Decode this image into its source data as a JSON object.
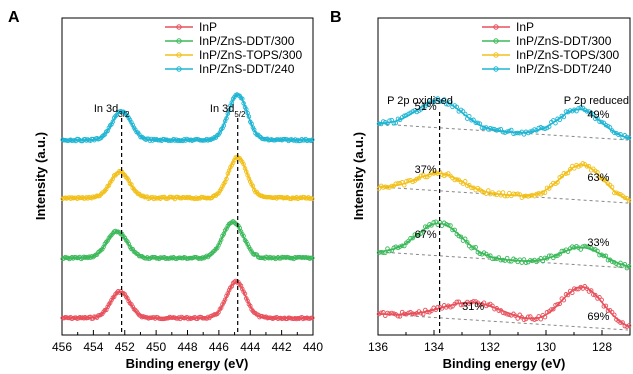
{
  "chart_data": [
    {
      "panel": "A",
      "type": "scatter",
      "xlabel": "Binding energy (eV)",
      "ylabel": "Intensity (a.u.)",
      "xlim": [
        456,
        440
      ],
      "x_reversed": true,
      "xticks": [
        "456",
        "454",
        "452",
        "450",
        "448",
        "446",
        "444",
        "442",
        "440"
      ],
      "legend": {
        "position": "top-right"
      },
      "annotations": [
        {
          "text_main": "In 3d",
          "text_sub": "3/2",
          "x": 452.2
        },
        {
          "text_main": "In 3d",
          "text_sub": "5/2",
          "x": 444.8
        }
      ],
      "reference_lines": [
        452.2,
        444.8
      ],
      "series": [
        {
          "name": "InP",
          "color": "#e8505b",
          "offset": 0.0,
          "peaks": [
            {
              "center": 452.3,
              "width": 0.6,
              "height": 0.55
            },
            {
              "center": 444.9,
              "width": 0.6,
              "height": 0.75
            }
          ]
        },
        {
          "name": "InP/ZnS-DDT/300",
          "color": "#3cb95a",
          "offset": 1.0,
          "peaks": [
            {
              "center": 452.5,
              "width": 0.65,
              "height": 0.55
            },
            {
              "center": 445.1,
              "width": 0.65,
              "height": 0.75
            }
          ]
        },
        {
          "name": "InP/ZnS-TOPS/300",
          "color": "#f2c01a",
          "offset": 2.0,
          "peaks": [
            {
              "center": 452.3,
              "width": 0.6,
              "height": 0.55
            },
            {
              "center": 444.8,
              "width": 0.6,
              "height": 0.85
            }
          ]
        },
        {
          "name": "InP/ZnS-DDT/240",
          "color": "#1fb5d3",
          "offset": 3.0,
          "peaks": [
            {
              "center": 452.2,
              "width": 0.6,
              "height": 0.6
            },
            {
              "center": 444.8,
              "width": 0.6,
              "height": 0.95
            }
          ]
        }
      ]
    },
    {
      "panel": "B",
      "type": "scatter",
      "xlabel": "Binding energy (eV)",
      "ylabel": "Intensity (a.u.)",
      "xlim": [
        136,
        127
      ],
      "x_reversed": true,
      "xticks": [
        "136",
        "134",
        "132",
        "130",
        "128"
      ],
      "legend": {
        "position": "top-right"
      },
      "annotations": [
        {
          "text": "P 2p oxidised",
          "x": 134.5
        },
        {
          "text": "P 2p reduced",
          "x": 128.2
        }
      ],
      "reference_lines": [
        133.8
      ],
      "series": [
        {
          "name": "InP",
          "color": "#e8505b",
          "offset": 0.0,
          "oxidised_pct": "31%",
          "reduced_pct": "69%",
          "peaks": [
            {
              "center": 132.6,
              "width": 1.1,
              "height": 0.35
            },
            {
              "center": 128.7,
              "width": 0.75,
              "height": 0.8
            }
          ]
        },
        {
          "name": "InP/ZnS-DDT/300",
          "color": "#3cb95a",
          "offset": 1.0,
          "oxidised_pct": "67%",
          "reduced_pct": "33%",
          "peaks": [
            {
              "center": 133.8,
              "width": 0.8,
              "height": 0.65
            },
            {
              "center": 128.7,
              "width": 0.75,
              "height": 0.35
            }
          ]
        },
        {
          "name": "InP/ZnS-TOPS/300",
          "color": "#f2c01a",
          "offset": 2.0,
          "oxidised_pct": "37%",
          "reduced_pct": "63%",
          "peaks": [
            {
              "center": 133.8,
              "width": 0.8,
              "height": 0.35
            },
            {
              "center": 128.7,
              "width": 0.75,
              "height": 0.7
            }
          ]
        },
        {
          "name": "InP/ZnS-DDT/240",
          "color": "#1fb5d3",
          "offset": 3.0,
          "oxidised_pct": "51%",
          "reduced_pct": "49%",
          "peaks": [
            {
              "center": 133.8,
              "width": 0.8,
              "height": 0.55
            },
            {
              "center": 128.8,
              "width": 0.75,
              "height": 0.55
            }
          ]
        }
      ]
    }
  ]
}
